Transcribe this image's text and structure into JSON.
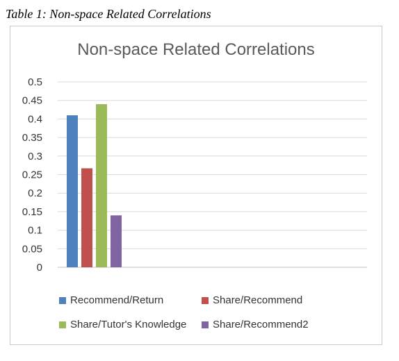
{
  "caption": "Table 1: Non-space Related Correlations",
  "chart_data": {
    "type": "bar",
    "title": "Non-space Related Correlations",
    "xlabel": "",
    "ylabel": "",
    "ylim": [
      0,
      0.5
    ],
    "yticks": [
      "0",
      "0.05",
      "0.1",
      "0.15",
      "0.2",
      "0.25",
      "0.3",
      "0.35",
      "0.4",
      "0.45",
      "0.5"
    ],
    "grid": true,
    "legend_position": "bottom",
    "categories": [
      ""
    ],
    "series": [
      {
        "name": "Recommend/Return",
        "values": [
          0.41
        ],
        "color": "#4f81bd"
      },
      {
        "name": "Share/Recommend",
        "values": [
          0.267
        ],
        "color": "#c0504d"
      },
      {
        "name": "Share/Tutor's Knowledge",
        "values": [
          0.44
        ],
        "color": "#9bbb59"
      },
      {
        "name": "Share/Recommend2",
        "values": [
          0.14
        ],
        "color": "#8064a2"
      }
    ]
  }
}
